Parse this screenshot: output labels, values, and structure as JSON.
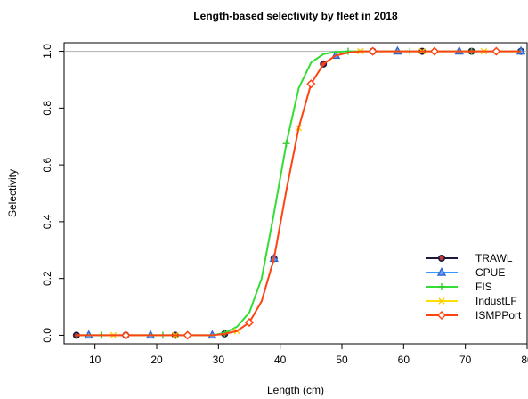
{
  "chart_data": {
    "type": "line",
    "title": "Length-based selectivity by fleet in 2018",
    "xlabel": "Length (cm)",
    "ylabel": "Selectivity",
    "xlim": [
      5,
      80
    ],
    "ylim": [
      -0.03,
      1.03
    ],
    "x_ticks": [
      10,
      20,
      30,
      40,
      50,
      60,
      70,
      80
    ],
    "y_ticks": [
      0.0,
      0.2,
      0.4,
      0.6,
      0.8,
      1.0
    ],
    "x_tick_labels": [
      "10",
      "20",
      "30",
      "40",
      "50",
      "60",
      "70",
      "80"
    ],
    "y_tick_labels": [
      "0.0",
      "0.2",
      "0.4",
      "0.6",
      "0.8",
      "1.0"
    ],
    "reference_lines": [
      1.0
    ],
    "grid": false,
    "legend_position": "bottom-right",
    "x": [
      7,
      9,
      11,
      13,
      15,
      17,
      19,
      21,
      23,
      25,
      27,
      29,
      31,
      33,
      35,
      37,
      39,
      41,
      43,
      45,
      47,
      49,
      51,
      53,
      55,
      57,
      59,
      61,
      63,
      65,
      67,
      69,
      71,
      73,
      75,
      77,
      79
    ],
    "series": [
      {
        "name": "TRAWL",
        "line_color": "#1a1a40",
        "marker": "circle",
        "marker_color": "#1a1a40",
        "marker_fill": "#cc3333",
        "marker_every": 4,
        "marker_offset": 0,
        "visible": false,
        "values": [
          0,
          0,
          0,
          0,
          0,
          0,
          0,
          0,
          0,
          0,
          0,
          0,
          0.005,
          0.015,
          0.045,
          0.12,
          0.27,
          0.51,
          0.73,
          0.885,
          0.955,
          0.985,
          0.995,
          1.0,
          1.0,
          1.0,
          1.0,
          1.0,
          1.0,
          1.0,
          1.0,
          1.0,
          1.0,
          1.0,
          1.0,
          1.0,
          1.0
        ]
      },
      {
        "name": "CPUE",
        "line_color": "#3399ff",
        "marker": "triangle",
        "marker_color": "#3366cc",
        "marker_fill": "#66aaff",
        "marker_every": 5,
        "marker_offset": 1,
        "visible": false,
        "values": [
          0,
          0,
          0,
          0,
          0,
          0,
          0,
          0,
          0,
          0,
          0,
          0,
          0.005,
          0.015,
          0.045,
          0.12,
          0.27,
          0.51,
          0.73,
          0.885,
          0.955,
          0.985,
          0.995,
          1.0,
          1.0,
          1.0,
          1.0,
          1.0,
          1.0,
          1.0,
          1.0,
          1.0,
          1.0,
          1.0,
          1.0,
          1.0,
          1.0
        ]
      },
      {
        "name": "FIS",
        "line_color": "#33dd33",
        "marker": "plus",
        "marker_color": "#33cc33",
        "marker_fill": "none",
        "marker_every": 5,
        "marker_offset": 2,
        "visible": true,
        "values": [
          0,
          0,
          0,
          0,
          0,
          0,
          0,
          0,
          0,
          0,
          0,
          0,
          0.008,
          0.03,
          0.08,
          0.2,
          0.43,
          0.675,
          0.87,
          0.96,
          0.99,
          0.998,
          1.0,
          1.0,
          1.0,
          1.0,
          1.0,
          1.0,
          1.0,
          1.0,
          1.0,
          1.0,
          1.0,
          1.0,
          1.0,
          1.0,
          1.0
        ]
      },
      {
        "name": "IndustLF",
        "line_color": "#ffdd00",
        "marker": "cross",
        "marker_color": "#ffcc00",
        "marker_fill": "none",
        "marker_every": 5,
        "marker_offset": 3,
        "visible": false,
        "values": [
          0,
          0,
          0,
          0,
          0,
          0,
          0,
          0,
          0,
          0,
          0,
          0,
          0.005,
          0.015,
          0.045,
          0.12,
          0.27,
          0.51,
          0.73,
          0.885,
          0.955,
          0.985,
          0.995,
          1.0,
          1.0,
          1.0,
          1.0,
          1.0,
          1.0,
          1.0,
          1.0,
          1.0,
          1.0,
          1.0,
          1.0,
          1.0,
          1.0
        ]
      },
      {
        "name": "ISMPPort",
        "line_color": "#ff4411",
        "marker": "diamond",
        "marker_color": "#ff4411",
        "marker_fill": "none",
        "marker_every": 5,
        "marker_offset": 4,
        "visible": true,
        "values": [
          0,
          0,
          0,
          0,
          0,
          0,
          0,
          0,
          0,
          0,
          0,
          0,
          0.005,
          0.015,
          0.045,
          0.12,
          0.27,
          0.51,
          0.73,
          0.885,
          0.955,
          0.985,
          0.995,
          1.0,
          1.0,
          1.0,
          1.0,
          1.0,
          1.0,
          1.0,
          1.0,
          1.0,
          1.0,
          1.0,
          1.0,
          1.0,
          1.0
        ]
      }
    ]
  }
}
